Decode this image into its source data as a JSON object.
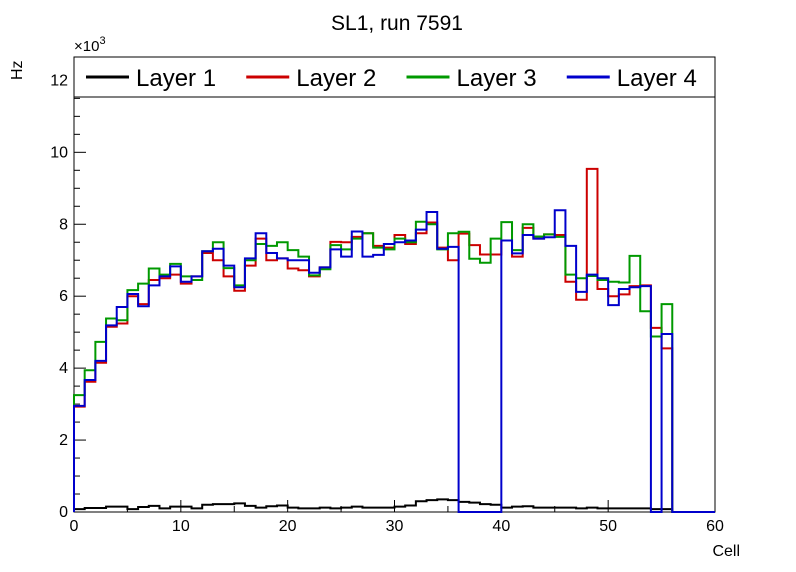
{
  "window": {
    "title": "SL1, run 7591"
  },
  "chart_data": {
    "type": "line",
    "subtype": "step-histogram",
    "title": "SL1, run 7591",
    "xlabel": "Cell",
    "ylabel": "Hz",
    "y_multiplier": {
      "base": "×10",
      "exponent": "3"
    },
    "xlim": [
      0,
      60
    ],
    "ylim": [
      0,
      12.65
    ],
    "x_ticks": [
      0,
      10,
      20,
      30,
      40,
      50,
      60
    ],
    "x_minor_step": 5,
    "y_ticks": [
      0,
      2,
      4,
      6,
      8,
      10,
      12
    ],
    "y_minor_step": 0.5,
    "bin_width": 1,
    "grid": false,
    "legend_position": "top-strip-full-width",
    "frame_color": "#000000",
    "background_color": "#ffffff",
    "series": [
      {
        "name": "Layer 1",
        "color": "#000000",
        "values": [
          0.08,
          0.11,
          0.11,
          0.15,
          0.15,
          0.08,
          0.14,
          0.17,
          0.1,
          0.15,
          0.15,
          0.1,
          0.2,
          0.22,
          0.22,
          0.24,
          0.17,
          0.12,
          0.16,
          0.18,
          0.12,
          0.1,
          0.1,
          0.12,
          0.1,
          0.12,
          0.15,
          0.12,
          0.12,
          0.12,
          0.15,
          0.18,
          0.3,
          0.33,
          0.35,
          0.33,
          0.28,
          0.26,
          0.22,
          0.2,
          0.12,
          0.15,
          0.16,
          0.12,
          0.12,
          0.12,
          0.12,
          0.1,
          0.12,
          0.1,
          0.1,
          0.1,
          0.1,
          0.1,
          0.08,
          0.08,
          0,
          0,
          0,
          0
        ]
      },
      {
        "name": "Layer 2",
        "color": "#cc0000",
        "values": [
          2.93,
          3.62,
          4.15,
          5.15,
          5.24,
          6.0,
          5.78,
          6.45,
          6.5,
          6.6,
          6.35,
          6.55,
          7.2,
          7.0,
          6.55,
          6.15,
          6.85,
          7.6,
          7.0,
          7.05,
          6.77,
          6.72,
          6.55,
          6.8,
          7.51,
          7.5,
          7.65,
          7.75,
          7.4,
          7.35,
          7.7,
          7.45,
          7.75,
          8.05,
          7.35,
          7.0,
          7.74,
          7.42,
          7.16,
          7.16,
          7.55,
          7.1,
          7.9,
          7.6,
          7.72,
          7.7,
          6.4,
          5.9,
          9.54,
          6.2,
          6.0,
          6.05,
          6.28,
          6.3,
          5.12,
          4.55,
          0,
          0,
          0,
          0
        ]
      },
      {
        "name": "Layer 3",
        "color": "#009900",
        "values": [
          3.25,
          3.94,
          4.73,
          5.38,
          5.33,
          6.17,
          6.35,
          6.77,
          6.6,
          6.9,
          6.55,
          6.45,
          7.25,
          7.5,
          6.78,
          6.3,
          7.0,
          7.45,
          7.4,
          7.5,
          7.28,
          7.1,
          6.58,
          6.75,
          7.42,
          7.3,
          7.6,
          7.75,
          7.35,
          7.3,
          7.6,
          7.5,
          8.07,
          8.0,
          7.3,
          7.75,
          7.79,
          7.04,
          6.93,
          7.6,
          8.06,
          7.28,
          8.0,
          7.66,
          7.72,
          7.65,
          6.6,
          6.5,
          6.56,
          6.45,
          6.4,
          6.38,
          7.12,
          5.58,
          4.88,
          5.78,
          0,
          0,
          0,
          0
        ]
      },
      {
        "name": "Layer 4",
        "color": "#0000cc",
        "values": [
          2.95,
          3.67,
          4.2,
          5.19,
          5.7,
          6.06,
          5.72,
          6.3,
          6.55,
          6.83,
          6.4,
          6.55,
          7.25,
          7.32,
          6.85,
          6.25,
          7.05,
          7.75,
          7.2,
          7.05,
          7.0,
          7.0,
          6.65,
          6.8,
          7.3,
          7.1,
          7.8,
          7.1,
          7.15,
          7.45,
          7.5,
          7.55,
          7.85,
          8.34,
          7.32,
          7.37,
          0,
          0,
          0,
          0,
          7.55,
          7.19,
          7.7,
          7.6,
          7.64,
          8.39,
          7.4,
          6.12,
          6.6,
          6.5,
          5.75,
          6.2,
          6.25,
          6.28,
          0,
          4.95,
          0,
          0,
          0,
          0
        ]
      }
    ],
    "legend_entries": [
      "Layer 1",
      "Layer 2",
      "Layer 3",
      "Layer 4"
    ]
  }
}
